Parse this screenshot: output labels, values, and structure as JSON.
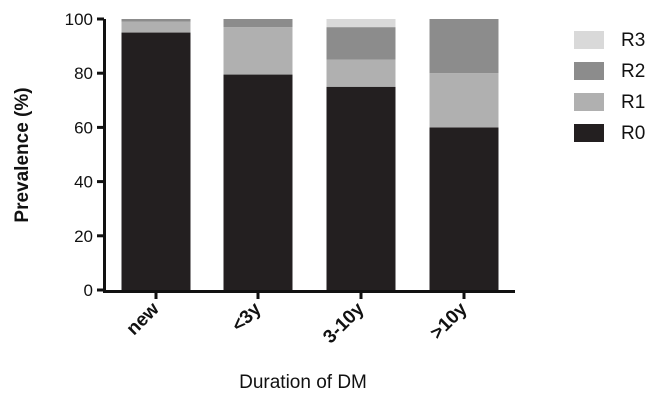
{
  "chart_data": {
    "type": "bar",
    "stacked": true,
    "categories": [
      "new",
      "<3y",
      "3-10y",
      ">10y"
    ],
    "series": [
      {
        "name": "R0",
        "values": [
          95,
          79.5,
          75,
          60
        ],
        "color": "#231f20"
      },
      {
        "name": "R1",
        "values": [
          4,
          17.5,
          10,
          20
        ],
        "color": "#b0b0b0"
      },
      {
        "name": "R2",
        "values": [
          1,
          3,
          12,
          20
        ],
        "color": "#8c8c8c"
      },
      {
        "name": "R3",
        "values": [
          0,
          0,
          3,
          0
        ],
        "color": "#d9d9d9"
      }
    ],
    "xlabel": "Duration of DM",
    "ylabel": "Prevalence (%)",
    "ylim": [
      0,
      100
    ],
    "yticks": [
      0,
      20,
      40,
      60,
      80,
      100
    ],
    "legend_order": [
      "R3",
      "R2",
      "R1",
      "R0"
    ],
    "legend_position": "right",
    "grid": false
  }
}
